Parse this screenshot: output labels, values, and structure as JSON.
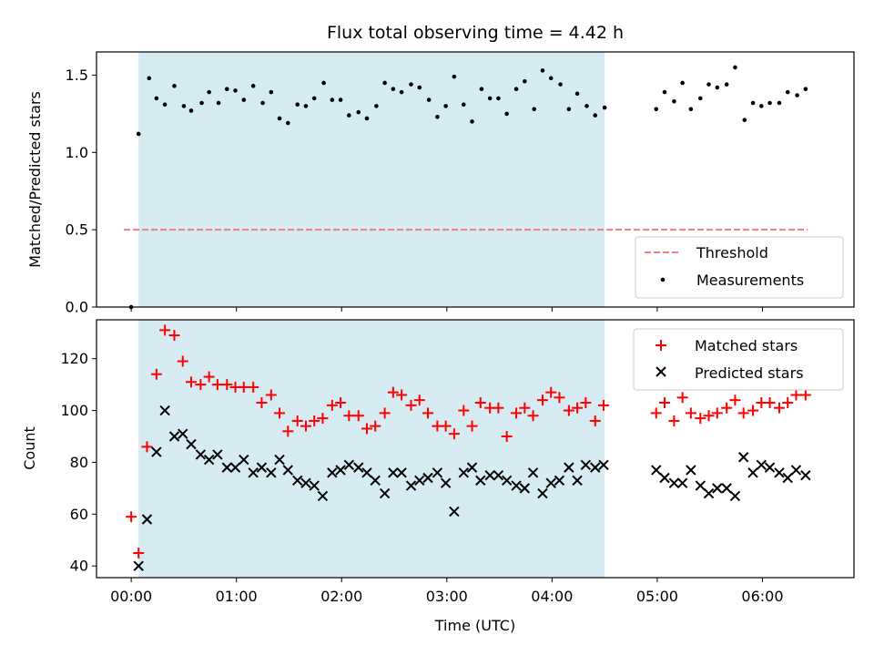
{
  "chart_data": {
    "title": "Flux total observing time = 4.42 h",
    "xlabel": "Time (UTC)",
    "x_unit": "hours since 00:00 UTC",
    "xlim": [
      -0.33,
      6.87
    ],
    "xticks": [
      {
        "value": 0,
        "label": "00:00"
      },
      {
        "value": 1,
        "label": "01:00"
      },
      {
        "value": 2,
        "label": "02:00"
      },
      {
        "value": 3,
        "label": "03:00"
      },
      {
        "value": 4,
        "label": "04:00"
      },
      {
        "value": 5,
        "label": "05:00"
      },
      {
        "value": 6,
        "label": "06:00"
      }
    ],
    "shaded_span": {
      "x0": 0.07,
      "x1": 4.5,
      "color": "#add8e6"
    },
    "panels": [
      {
        "type": "scatter",
        "ylabel": "Matched/Predicted stars",
        "ylim": [
          0,
          1.65
        ],
        "yticks": [
          {
            "value": 0,
            "label": "0.0"
          },
          {
            "value": 0.5,
            "label": "0.5"
          },
          {
            "value": 1.0,
            "label": "1.0"
          },
          {
            "value": 1.5,
            "label": "1.5"
          }
        ],
        "legend_position": "lower-right",
        "threshold": {
          "name": "Threshold",
          "value": 0.5,
          "x0": -0.07,
          "x1": 6.43,
          "color": "#f08080"
        },
        "series": [
          {
            "name": "Measurements",
            "marker": "dot",
            "color": "#000000",
            "points": [
              [
                0.0,
                0.0
              ],
              [
                0.07,
                1.12
              ],
              [
                0.17,
                1.48
              ],
              [
                0.24,
                1.35
              ],
              [
                0.32,
                1.31
              ],
              [
                0.41,
                1.43
              ],
              [
                0.5,
                1.3
              ],
              [
                0.57,
                1.27
              ],
              [
                0.67,
                1.32
              ],
              [
                0.74,
                1.39
              ],
              [
                0.83,
                1.32
              ],
              [
                0.91,
                1.41
              ],
              [
                0.99,
                1.4
              ],
              [
                1.07,
                1.34
              ],
              [
                1.16,
                1.43
              ],
              [
                1.25,
                1.32
              ],
              [
                1.33,
                1.39
              ],
              [
                1.41,
                1.22
              ],
              [
                1.49,
                1.19
              ],
              [
                1.58,
                1.31
              ],
              [
                1.66,
                1.3
              ],
              [
                1.74,
                1.35
              ],
              [
                1.83,
                1.45
              ],
              [
                1.91,
                1.34
              ],
              [
                1.99,
                1.34
              ],
              [
                2.07,
                1.24
              ],
              [
                2.16,
                1.26
              ],
              [
                2.24,
                1.22
              ],
              [
                2.33,
                1.3
              ],
              [
                2.41,
                1.45
              ],
              [
                2.49,
                1.41
              ],
              [
                2.57,
                1.39
              ],
              [
                2.66,
                1.44
              ],
              [
                2.74,
                1.42
              ],
              [
                2.83,
                1.34
              ],
              [
                2.91,
                1.23
              ],
              [
                2.99,
                1.3
              ],
              [
                3.07,
                1.49
              ],
              [
                3.16,
                1.31
              ],
              [
                3.24,
                1.2
              ],
              [
                3.33,
                1.41
              ],
              [
                3.41,
                1.35
              ],
              [
                3.49,
                1.35
              ],
              [
                3.57,
                1.25
              ],
              [
                3.66,
                1.41
              ],
              [
                3.74,
                1.46
              ],
              [
                3.83,
                1.28
              ],
              [
                3.91,
                1.53
              ],
              [
                3.99,
                1.48
              ],
              [
                4.08,
                1.44
              ],
              [
                4.16,
                1.28
              ],
              [
                4.24,
                1.38
              ],
              [
                4.33,
                1.3
              ],
              [
                4.41,
                1.24
              ],
              [
                4.5,
                1.29
              ],
              [
                4.99,
                1.28
              ],
              [
                5.07,
                1.39
              ],
              [
                5.16,
                1.33
              ],
              [
                5.24,
                1.45
              ],
              [
                5.32,
                1.28
              ],
              [
                5.41,
                1.35
              ],
              [
                5.49,
                1.44
              ],
              [
                5.57,
                1.42
              ],
              [
                5.66,
                1.44
              ],
              [
                5.74,
                1.55
              ],
              [
                5.83,
                1.21
              ],
              [
                5.91,
                1.32
              ],
              [
                5.99,
                1.3
              ],
              [
                6.07,
                1.32
              ],
              [
                6.16,
                1.32
              ],
              [
                6.24,
                1.39
              ],
              [
                6.33,
                1.37
              ],
              [
                6.41,
                1.41
              ]
            ]
          }
        ]
      },
      {
        "type": "scatter",
        "ylabel": "Count",
        "ylim": [
          35.5,
          135
        ],
        "yticks": [
          {
            "value": 40,
            "label": "40"
          },
          {
            "value": 60,
            "label": "60"
          },
          {
            "value": 80,
            "label": "80"
          },
          {
            "value": 100,
            "label": "100"
          },
          {
            "value": 120,
            "label": "120"
          }
        ],
        "legend_position": "upper-right",
        "series": [
          {
            "name": "Matched stars",
            "marker": "plus",
            "color": "#ff0000",
            "points": [
              [
                0.0,
                59
              ],
              [
                0.07,
                45
              ],
              [
                0.15,
                86
              ],
              [
                0.24,
                114
              ],
              [
                0.32,
                131
              ],
              [
                0.41,
                129
              ],
              [
                0.49,
                119
              ],
              [
                0.57,
                111
              ],
              [
                0.66,
                110
              ],
              [
                0.74,
                113
              ],
              [
                0.82,
                110
              ],
              [
                0.91,
                110
              ],
              [
                0.99,
                109
              ],
              [
                1.07,
                109
              ],
              [
                1.16,
                109
              ],
              [
                1.24,
                103
              ],
              [
                1.33,
                106
              ],
              [
                1.41,
                99
              ],
              [
                1.49,
                92
              ],
              [
                1.58,
                96
              ],
              [
                1.66,
                94
              ],
              [
                1.74,
                96
              ],
              [
                1.82,
                97
              ],
              [
                1.91,
                102
              ],
              [
                1.99,
                103
              ],
              [
                2.07,
                98
              ],
              [
                2.16,
                98
              ],
              [
                2.24,
                93
              ],
              [
                2.32,
                94
              ],
              [
                2.41,
                99
              ],
              [
                2.49,
                107
              ],
              [
                2.57,
                106
              ],
              [
                2.66,
                102
              ],
              [
                2.74,
                104
              ],
              [
                2.82,
                99
              ],
              [
                2.91,
                94
              ],
              [
                2.99,
                94
              ],
              [
                3.07,
                91
              ],
              [
                3.16,
                100
              ],
              [
                3.24,
                94
              ],
              [
                3.32,
                103
              ],
              [
                3.41,
                101
              ],
              [
                3.49,
                101
              ],
              [
                3.57,
                90
              ],
              [
                3.66,
                99
              ],
              [
                3.74,
                101
              ],
              [
                3.82,
                98
              ],
              [
                3.91,
                104
              ],
              [
                3.99,
                107
              ],
              [
                4.07,
                105
              ],
              [
                4.16,
                100
              ],
              [
                4.24,
                101
              ],
              [
                4.32,
                103
              ],
              [
                4.41,
                96
              ],
              [
                4.49,
                102
              ],
              [
                4.99,
                99
              ],
              [
                5.07,
                103
              ],
              [
                5.16,
                96
              ],
              [
                5.24,
                105
              ],
              [
                5.32,
                99
              ],
              [
                5.41,
                97
              ],
              [
                5.49,
                98
              ],
              [
                5.57,
                99
              ],
              [
                5.66,
                101
              ],
              [
                5.74,
                104
              ],
              [
                5.82,
                99
              ],
              [
                5.91,
                100
              ],
              [
                5.99,
                103
              ],
              [
                6.07,
                103
              ],
              [
                6.16,
                101
              ],
              [
                6.24,
                103
              ],
              [
                6.32,
                106
              ],
              [
                6.41,
                106
              ]
            ]
          },
          {
            "name": "Predicted stars",
            "marker": "x",
            "color": "#000000",
            "points": [
              [
                0.07,
                40
              ],
              [
                0.15,
                58
              ],
              [
                0.24,
                84
              ],
              [
                0.32,
                100
              ],
              [
                0.41,
                90
              ],
              [
                0.49,
                91
              ],
              [
                0.57,
                87
              ],
              [
                0.66,
                83
              ],
              [
                0.74,
                81
              ],
              [
                0.82,
                83
              ],
              [
                0.91,
                78
              ],
              [
                0.99,
                78
              ],
              [
                1.07,
                81
              ],
              [
                1.16,
                76
              ],
              [
                1.24,
                78
              ],
              [
                1.33,
                76
              ],
              [
                1.41,
                81
              ],
              [
                1.49,
                77
              ],
              [
                1.58,
                73
              ],
              [
                1.66,
                72
              ],
              [
                1.74,
                71
              ],
              [
                1.82,
                67
              ],
              [
                1.91,
                76
              ],
              [
                1.99,
                77
              ],
              [
                2.07,
                79
              ],
              [
                2.16,
                78
              ],
              [
                2.24,
                76
              ],
              [
                2.32,
                73
              ],
              [
                2.41,
                68
              ],
              [
                2.49,
                76
              ],
              [
                2.57,
                76
              ],
              [
                2.66,
                71
              ],
              [
                2.74,
                73
              ],
              [
                2.82,
                74
              ],
              [
                2.91,
                76
              ],
              [
                2.99,
                72
              ],
              [
                3.07,
                61
              ],
              [
                3.16,
                76
              ],
              [
                3.24,
                78
              ],
              [
                3.32,
                73
              ],
              [
                3.41,
                75
              ],
              [
                3.49,
                75
              ],
              [
                3.57,
                73
              ],
              [
                3.66,
                71
              ],
              [
                3.74,
                70
              ],
              [
                3.82,
                76
              ],
              [
                3.91,
                68
              ],
              [
                3.99,
                72
              ],
              [
                4.07,
                73
              ],
              [
                4.16,
                78
              ],
              [
                4.24,
                73
              ],
              [
                4.32,
                79
              ],
              [
                4.41,
                78
              ],
              [
                4.49,
                79
              ],
              [
                4.99,
                77
              ],
              [
                5.07,
                74
              ],
              [
                5.16,
                72
              ],
              [
                5.24,
                72
              ],
              [
                5.32,
                77
              ],
              [
                5.41,
                71
              ],
              [
                5.49,
                68
              ],
              [
                5.57,
                70
              ],
              [
                5.66,
                70
              ],
              [
                5.74,
                67
              ],
              [
                5.82,
                82
              ],
              [
                5.91,
                76
              ],
              [
                5.99,
                79
              ],
              [
                6.07,
                78
              ],
              [
                6.16,
                76
              ],
              [
                6.24,
                74
              ],
              [
                6.32,
                77
              ],
              [
                6.41,
                75
              ]
            ]
          }
        ]
      }
    ]
  }
}
